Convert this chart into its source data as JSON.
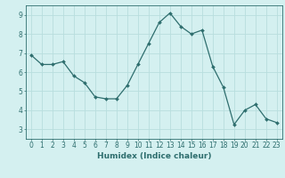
{
  "x": [
    0,
    1,
    2,
    3,
    4,
    5,
    6,
    7,
    8,
    9,
    10,
    11,
    12,
    13,
    14,
    15,
    16,
    17,
    18,
    19,
    20,
    21,
    22,
    23
  ],
  "y": [
    6.9,
    6.4,
    6.4,
    6.55,
    5.8,
    5.45,
    4.7,
    4.6,
    4.6,
    5.3,
    6.4,
    7.5,
    8.6,
    9.1,
    8.4,
    8.0,
    8.2,
    6.3,
    5.2,
    3.25,
    4.0,
    4.3,
    3.55,
    3.35
  ],
  "line_color": "#2e6e6e",
  "marker": "D",
  "marker_size": 2.0,
  "bg_color": "#d4f0f0",
  "grid_color": "#b8dede",
  "xlabel": "Humidex (Indice chaleur)",
  "xlim": [
    -0.5,
    23.5
  ],
  "ylim": [
    2.5,
    9.5
  ],
  "yticks": [
    3,
    4,
    5,
    6,
    7,
    8,
    9
  ],
  "xticks": [
    0,
    1,
    2,
    3,
    4,
    5,
    6,
    7,
    8,
    9,
    10,
    11,
    12,
    13,
    14,
    15,
    16,
    17,
    18,
    19,
    20,
    21,
    22,
    23
  ],
  "tick_fontsize": 5.5,
  "xlabel_fontsize": 6.5,
  "axis_color": "#2e6e6e",
  "linewidth": 0.9
}
